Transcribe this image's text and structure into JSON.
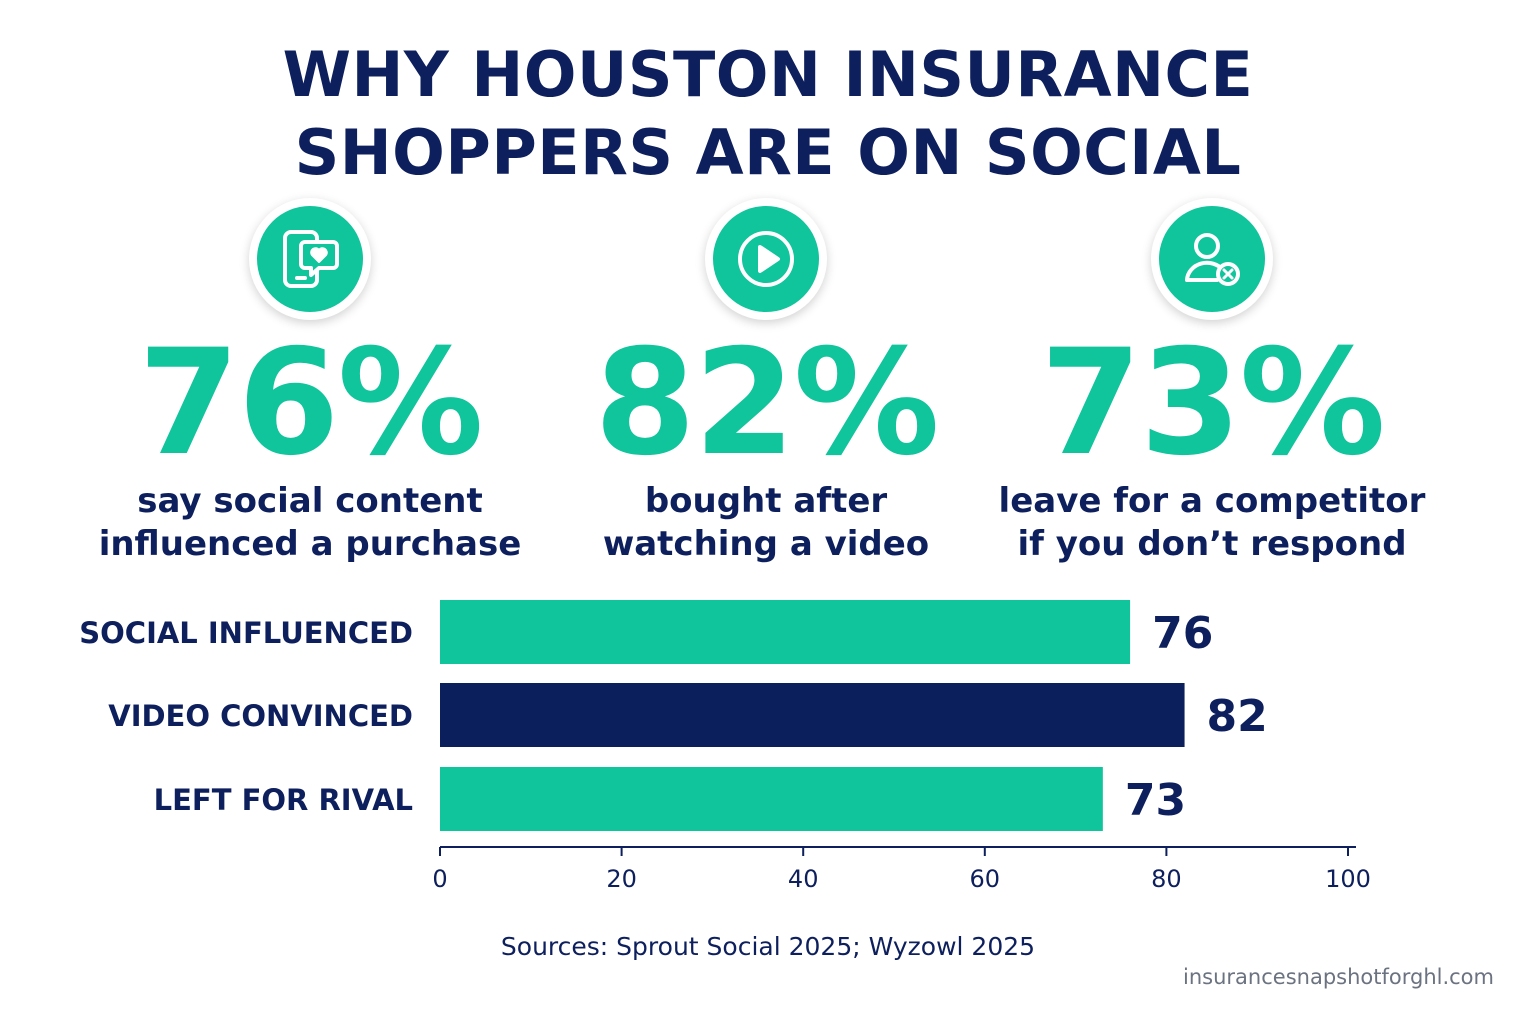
{
  "title": {
    "line1": "WHY HOUSTON INSURANCE",
    "line2": "SHOPPERS ARE ON SOCIAL"
  },
  "stats": [
    {
      "icon": "phone-heart-chat-icon",
      "value": "76%",
      "caption_line1": "say social content",
      "caption_line2": "influenced a purchase"
    },
    {
      "icon": "play-video-icon",
      "value": "82%",
      "caption_line1": "bought after",
      "caption_line2": "watching a video"
    },
    {
      "icon": "user-remove-icon",
      "value": "73%",
      "caption_line1": "leave for a competitor",
      "caption_line2": "if you don’t respond"
    }
  ],
  "chart_data": {
    "type": "bar",
    "orientation": "horizontal",
    "categories": [
      "SOCIAL INFLUENCED",
      "VIDEO CONVINCED",
      "LEFT FOR RIVAL"
    ],
    "values": [
      76,
      82,
      73
    ],
    "value_labels": [
      "76",
      "82",
      "73"
    ],
    "bar_colors": [
      "#10c49c",
      "#0b1f5c",
      "#10c49c"
    ],
    "xlim": [
      0,
      100
    ],
    "x_ticks": [
      0,
      20,
      40,
      60,
      80,
      100
    ],
    "x_tick_labels": [
      "0",
      "20",
      "40",
      "60",
      "80",
      "100"
    ],
    "grid": false
  },
  "colors": {
    "teal": "#10c49c",
    "navy": "#0b1f5c",
    "text": "#0d1f5c",
    "muted": "#6b7280"
  },
  "footer": {
    "sources": "Sources: Sprout Social 2025; Wyzowl 2025",
    "site": "insurancesnapshotforghl.com"
  }
}
